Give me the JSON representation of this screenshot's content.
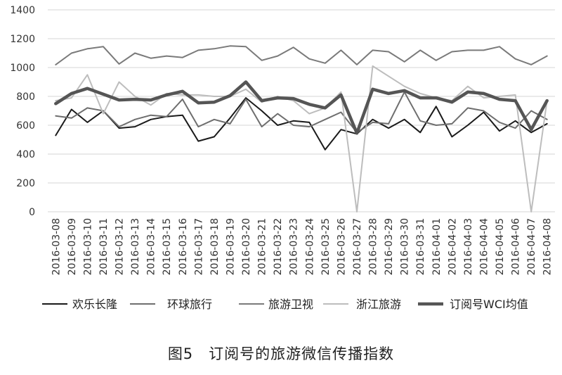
{
  "caption": "图5　订阅号的旅游微信传播指数",
  "chart_data": {
    "type": "line",
    "categories": [
      "2016-03-08",
      "2016-03-09",
      "2016-03-10",
      "2016-03-11",
      "2016-03-12",
      "2016-03-13",
      "2016-03-14",
      "2016-03-15",
      "2016-03-16",
      "2016-03-17",
      "2016-03-18",
      "2016-03-19",
      "2016-03-20",
      "2016-03-21",
      "2016-03-22",
      "2016-03-23",
      "2016-03-24",
      "2016-03-25",
      "2016-03-26",
      "2016-03-27",
      "2016-03-28",
      "2016-03-29",
      "2016-03-30",
      "2016-03-31",
      "2016-04-01",
      "2016-04-02",
      "2016-04-03",
      "2016-04-04",
      "2016-04-05",
      "2016-04-06",
      "2016-04-07",
      "2016-04-08"
    ],
    "ylim": [
      0,
      1400
    ],
    "yticks": [
      0,
      200,
      400,
      600,
      800,
      1000,
      1200,
      1400
    ],
    "grid": true,
    "legend_position": "bottom",
    "series": [
      {
        "name": "欢乐长隆",
        "color": "#1a1a1a",
        "width": 2,
        "values": [
          530,
          710,
          620,
          700,
          580,
          590,
          640,
          660,
          670,
          490,
          520,
          650,
          790,
          700,
          600,
          630,
          620,
          430,
          570,
          540,
          640,
          580,
          640,
          550,
          730,
          520,
          600,
          690,
          560,
          630,
          550,
          610
        ]
      },
      {
        "name": "环球旅行",
        "color": "#6e6e6e",
        "width": 2,
        "values": [
          665,
          650,
          720,
          700,
          590,
          640,
          670,
          660,
          780,
          590,
          640,
          610,
          780,
          590,
          680,
          600,
          590,
          640,
          690,
          550,
          620,
          610,
          830,
          630,
          600,
          610,
          720,
          700,
          620,
          580,
          700,
          640
        ]
      },
      {
        "name": "旅游卫视",
        "color": "#7a7a7a",
        "width": 2,
        "values": [
          1020,
          1100,
          1130,
          1145,
          1025,
          1100,
          1065,
          1080,
          1070,
          1120,
          1130,
          1150,
          1145,
          1050,
          1080,
          1140,
          1060,
          1030,
          1120,
          1020,
          1120,
          1110,
          1040,
          1120,
          1050,
          1110,
          1120,
          1120,
          1145,
          1060,
          1020,
          1080
        ]
      },
      {
        "name": "浙江旅游",
        "color": "#bdbdbd",
        "width": 2,
        "values": [
          770,
          790,
          950,
          680,
          900,
          800,
          740,
          820,
          810,
          810,
          800,
          800,
          850,
          760,
          800,
          770,
          680,
          720,
          830,
          0,
          1010,
          940,
          870,
          820,
          790,
          770,
          870,
          790,
          800,
          810,
          0,
          770
        ]
      },
      {
        "name": "订阅号WCI均值",
        "color": "#555555",
        "width": 4.5,
        "values": [
          750,
          820,
          855,
          815,
          775,
          780,
          775,
          810,
          835,
          755,
          760,
          805,
          900,
          770,
          790,
          785,
          745,
          720,
          810,
          545,
          850,
          820,
          840,
          790,
          790,
          760,
          830,
          820,
          780,
          770,
          570,
          770
        ]
      }
    ]
  }
}
